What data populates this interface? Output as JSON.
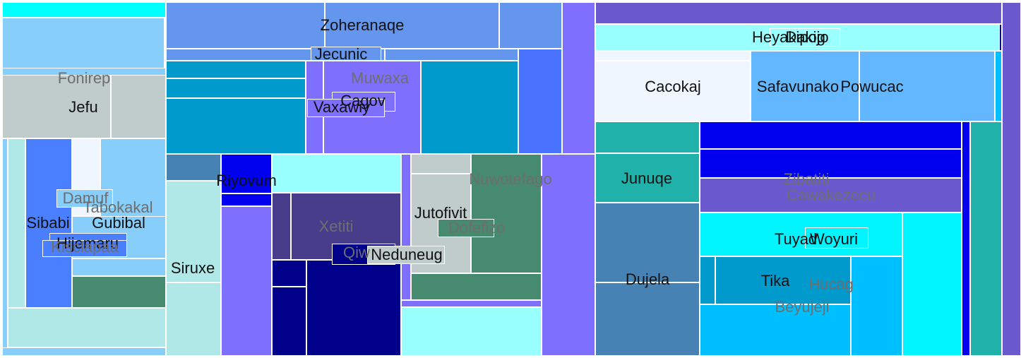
{
  "chart_data": {
    "type": "treemap",
    "title": "",
    "label_colors": {
      "dark": "#111111",
      "muted": "#6e6e6e"
    },
    "tiles": [
      {
        "id": "t-a",
        "color": "#00ffff"
      },
      {
        "id": "t-b",
        "color": "#87cefa"
      },
      {
        "id": "fonirep",
        "label": "Fonirep",
        "label_style": "muted",
        "color": "#87cefa"
      },
      {
        "id": "jefu",
        "label": "Jefu",
        "label_style": "dark",
        "color": "#c0cccc"
      },
      {
        "id": "t-c",
        "color": "#c0cccc"
      },
      {
        "id": "t-d",
        "color": "#87cefa"
      },
      {
        "id": "t-e",
        "color": "#b0e8e8"
      },
      {
        "id": "sibabi",
        "label": "Sibabi",
        "label_style": "dark",
        "color": "#4a80ff"
      },
      {
        "id": "t-f",
        "color": "#f0f6ff"
      },
      {
        "id": "tabokakal",
        "label": "Tabokakal",
        "label_style": "muted",
        "color": "#87cefa"
      },
      {
        "id": "gubibal",
        "label": "Gubibal",
        "label_style": "dark",
        "color": "#87cefa"
      },
      {
        "id": "t-g",
        "color": "#87cefa"
      },
      {
        "id": "t-h",
        "color": "#468a70"
      },
      {
        "id": "t-i",
        "color": "#b0e8e8"
      },
      {
        "id": "t-j",
        "color": "#87cefa"
      },
      {
        "id": "damuf",
        "label": "Damuf",
        "label_style": "muted",
        "color": "#87cefa"
      },
      {
        "id": "hijemaru",
        "label": "Hijemaru",
        "label_style": "dark",
        "color": "#4a80ff"
      },
      {
        "id": "kisclapaa",
        "label": "Kisclapaa",
        "label_style": "muted",
        "color": "#4a80ff"
      },
      {
        "id": "zoheranaqe",
        "label": "Zoheranaqe",
        "label_style": "dark",
        "color": "#6496ee"
      },
      {
        "id": "t-k",
        "color": "#6496ee"
      },
      {
        "id": "t-l",
        "color": "#6496ee"
      },
      {
        "id": "t-m",
        "color": "#6496ee"
      },
      {
        "id": "jecunic",
        "label": "Jecunic",
        "label_style": "dark",
        "color": "#6496ee"
      },
      {
        "id": "t-n",
        "color": "#6496ee"
      },
      {
        "id": "t-o",
        "color": "#7f6ffe"
      },
      {
        "id": "t-p",
        "color": "#009acd"
      },
      {
        "id": "t-q",
        "color": "#009acd"
      },
      {
        "id": "t-r",
        "color": "#009acd"
      },
      {
        "id": "t-s",
        "color": "#7f6ffe"
      },
      {
        "id": "muwaxa",
        "label": "Muwaxa",
        "label_style": "muted",
        "color": "#7f6ffe"
      },
      {
        "id": "cagov",
        "label": "Cagov",
        "label_style": "dark",
        "color": "#7f6ffe"
      },
      {
        "id": "vaxawiy",
        "label": "Vaxawiy",
        "label_style": "dark",
        "color": "#7f6ffe"
      },
      {
        "id": "t-t",
        "color": "#009acd"
      },
      {
        "id": "t-u",
        "color": "#4a73ff"
      },
      {
        "id": "t-v",
        "color": "#4682b4"
      },
      {
        "id": "riyovum",
        "label": "Riyovum",
        "label_style": "dark",
        "color": "#0000ee"
      },
      {
        "id": "t-w",
        "color": "#0000ee"
      },
      {
        "id": "siruxe",
        "label": "Siruxe",
        "label_style": "dark",
        "color": "#b0e8e8"
      },
      {
        "id": "t-x",
        "color": "#b0e8e8"
      },
      {
        "id": "t-y",
        "color": "#7f6ffe"
      },
      {
        "id": "t-z",
        "color": "#99ffff"
      },
      {
        "id": "t-aa",
        "color": "#483d8b"
      },
      {
        "id": "xetiti",
        "label": "Xetiti",
        "label_style": "muted",
        "color": "#483d8b"
      },
      {
        "id": "t-ab",
        "color": "#00008b"
      },
      {
        "id": "t-ac",
        "color": "#00008b"
      },
      {
        "id": "t-ad",
        "color": "#00008b"
      },
      {
        "id": "qiw",
        "label": "Qiw",
        "label_style": "muted",
        "color": "#00008b"
      },
      {
        "id": "t-ae",
        "color": "#7f6ffe"
      },
      {
        "id": "t-af",
        "color": "#c0cccc"
      },
      {
        "id": "jutofivit",
        "label": "Jutofivit",
        "label_style": "dark",
        "color": "#c0cccc"
      },
      {
        "id": "nuwotefago",
        "label": "Nuwotefago",
        "label_style": "muted",
        "color": "#468a70"
      },
      {
        "id": "dofefizo",
        "label": "Dofefizo",
        "label_style": "muted",
        "color": "#468a70"
      },
      {
        "id": "t-ag",
        "color": "#468a70"
      },
      {
        "id": "neduneug",
        "label": "Neduneug",
        "label_style": "dark",
        "color": "#c0cccc"
      },
      {
        "id": "t-ah",
        "color": "#99ffff"
      },
      {
        "id": "t-ai",
        "color": "#7f6ffe"
      },
      {
        "id": "t-aj",
        "color": "#7f6ffe"
      },
      {
        "id": "t-ak",
        "color": "#6a5acd"
      },
      {
        "id": "heyakipog",
        "label": "Heyakipog",
        "label_style": "dark",
        "color": "#99ffff"
      },
      {
        "id": "dakijo",
        "label": "Dakijo",
        "label_style": "dark",
        "color": "#99ffff"
      },
      {
        "id": "t-al",
        "color": "#00008b"
      },
      {
        "id": "t-am",
        "color": "#f0f6ff"
      },
      {
        "id": "cacokaj",
        "label": "Cacokaj",
        "label_style": "dark",
        "color": "#f0f6ff"
      },
      {
        "id": "safavunako",
        "label": "Safavunako",
        "label_style": "dark",
        "color": "#63b7ff"
      },
      {
        "id": "powucac",
        "label": "Powucac",
        "label_style": "dark",
        "color": "#63b7ff"
      },
      {
        "id": "t-an",
        "color": "#00bfff"
      },
      {
        "id": "t-ao",
        "color": "#6a5acd"
      },
      {
        "id": "t-ap",
        "color": "#20b2aa"
      },
      {
        "id": "junuqe",
        "label": "Junuqe",
        "label_style": "dark",
        "color": "#20b2aa"
      },
      {
        "id": "dujela",
        "label": "Dujela",
        "label_style": "dark",
        "color": "#4682b4"
      },
      {
        "id": "t-aq",
        "color": "#4682b4"
      },
      {
        "id": "t-ar",
        "color": "#0000ee"
      },
      {
        "id": "zibatiti",
        "label": "Zibatiti",
        "label_style": "muted",
        "color": "#0000ee"
      },
      {
        "id": "cawakezecu",
        "label": "Cawakezecu",
        "label_style": "muted",
        "color": "#6a5acd"
      },
      {
        "id": "tuyad",
        "label": "Tuyad",
        "label_style": "dark",
        "color": "#00f5ff"
      },
      {
        "id": "woyuri",
        "label": "Woyuri",
        "label_style": "dark",
        "color": "#00f5ff"
      },
      {
        "id": "t-as",
        "color": "#009acd"
      },
      {
        "id": "tika",
        "label": "Tika",
        "label_style": "dark",
        "color": "#009acd"
      },
      {
        "id": "hucag",
        "label": "Hucag",
        "label_style": "muted",
        "color": "#00bfff"
      },
      {
        "id": "beyujeji",
        "label": "Beyujeji",
        "label_style": "muted",
        "color": "#00bfff"
      },
      {
        "id": "t-at",
        "color": "#00f5ff"
      },
      {
        "id": "t-au",
        "color": "#0000ee"
      },
      {
        "id": "t-av",
        "color": "#20b2aa"
      },
      {
        "id": "t-aw",
        "color": "#6a5acd"
      }
    ]
  }
}
